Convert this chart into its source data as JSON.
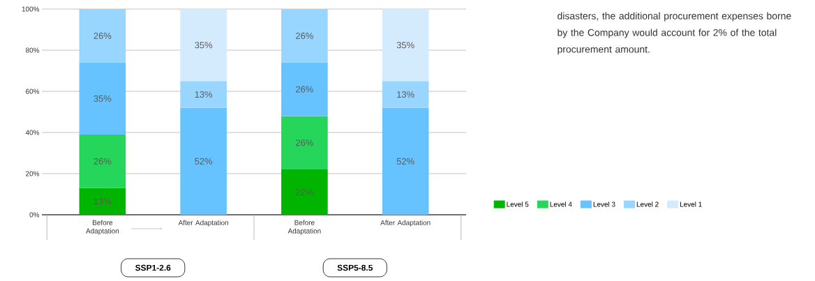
{
  "chart_data": {
    "type": "bar",
    "stacked": true,
    "categories": [
      "Before Adaptation",
      "After Adaptation",
      "Before Adaptation",
      "After Adaptation"
    ],
    "series": [
      {
        "name": "Level 5",
        "color": "#00b400",
        "values": [
          13,
          null,
          22,
          null
        ],
        "value_labels": [
          "13%",
          null,
          "22%",
          null
        ]
      },
      {
        "name": "Level 4",
        "color": "#26d65a",
        "values": [
          26,
          null,
          26,
          null
        ],
        "value_labels": [
          "26%",
          null,
          "26%",
          null
        ]
      },
      {
        "name": "Level 3",
        "color": "#66c3ff",
        "values": [
          35,
          52,
          26,
          52
        ],
        "value_labels": [
          "35%",
          "52%",
          "26%",
          "52%"
        ]
      },
      {
        "name": "Level 2",
        "color": "#99d6ff",
        "values": [
          26,
          13,
          26,
          13
        ],
        "value_labels": [
          "26%",
          "13%",
          "26%",
          "13%"
        ]
      },
      {
        "name": "Level 1",
        "color": "#d3ebfd",
        "values": [
          null,
          35,
          null,
          35
        ],
        "value_labels": [
          null,
          "35%",
          null,
          "35%"
        ]
      }
    ],
    "ylim": [
      0,
      100
    ],
    "yticks": [
      {
        "value": 0,
        "label": "0%"
      },
      {
        "value": 20,
        "label": "20%"
      },
      {
        "value": 40,
        "label": "40%"
      },
      {
        "value": 60,
        "label": "60%"
      },
      {
        "value": 80,
        "label": "80%"
      },
      {
        "value": 100,
        "label": "100%"
      }
    ],
    "grid": "y",
    "legend": "right",
    "annotations": [
      "SSP1-2.6",
      "SSP5-8.5",
      "disasters, the additional procurement expenses borne by the Company would account for 2% of the total procurement amount."
    ]
  }
}
